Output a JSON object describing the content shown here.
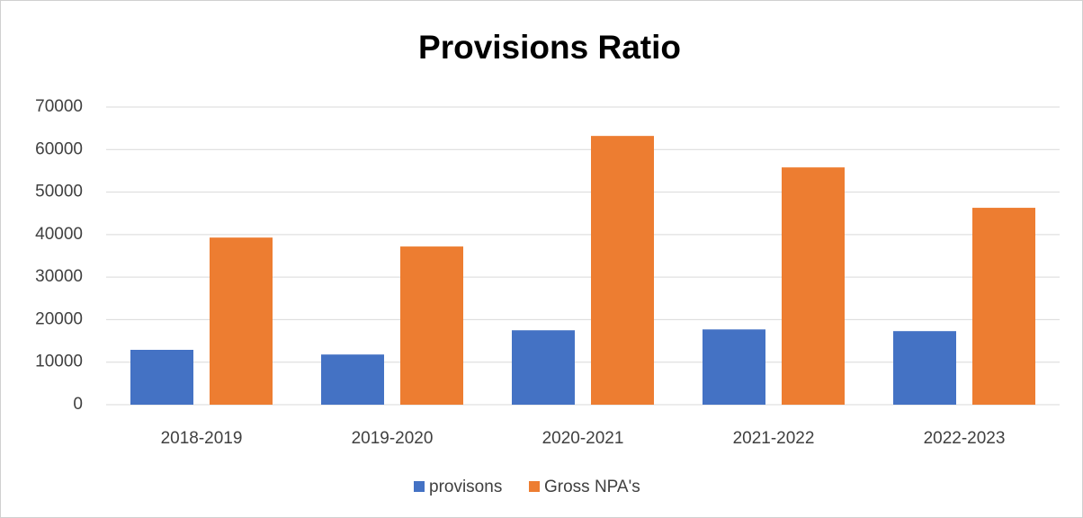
{
  "chart_data": {
    "type": "bar",
    "title": "Provisions Ratio",
    "categories": [
      "2018-2019",
      "2019-2020",
      "2020-2021",
      "2021-2022",
      "2022-2023"
    ],
    "series": [
      {
        "name": "provisons",
        "color": "#4472c4",
        "values": [
          12900,
          11800,
          17500,
          17700,
          17300
        ]
      },
      {
        "name": "Gross NPA's",
        "color": "#ed7d31",
        "values": [
          39300,
          37200,
          63200,
          55800,
          46300
        ]
      }
    ],
    "ylim": [
      0,
      70000
    ],
    "yticks": [
      0,
      10000,
      20000,
      30000,
      40000,
      50000,
      60000,
      70000
    ],
    "grid": true,
    "legend": "bottom"
  }
}
